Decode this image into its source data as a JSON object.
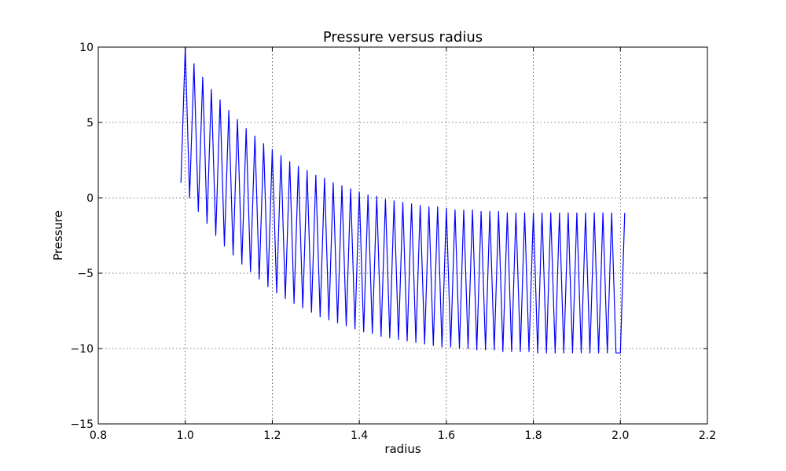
{
  "chart_data": {
    "type": "line",
    "title": "Pressure versus radius",
    "xlabel": "radius",
    "ylabel": "Pressure",
    "xlim": [
      0.8,
      2.2
    ],
    "ylim": [
      -15,
      10
    ],
    "xticks": [
      0.8,
      1.0,
      1.2,
      1.4,
      1.6,
      1.8,
      2.0,
      2.2
    ],
    "xtick_labels": [
      "0.8",
      "1.0",
      "1.2",
      "1.4",
      "1.6",
      "1.8",
      "2.0",
      "2.2"
    ],
    "yticks": [
      -15,
      -10,
      -5,
      0,
      5,
      10
    ],
    "ytick_labels": [
      "−15",
      "−10",
      "−5",
      "0",
      "5",
      "10"
    ],
    "grid": true,
    "series": [
      {
        "color": "#0000ff",
        "x": [
          0.99,
          1.0,
          1.01,
          1.02,
          1.03,
          1.04,
          1.05,
          1.06,
          1.07,
          1.08,
          1.09,
          1.1,
          1.11,
          1.12,
          1.13,
          1.14,
          1.15,
          1.16,
          1.17,
          1.18,
          1.19,
          1.2,
          1.21,
          1.22,
          1.23,
          1.24,
          1.25,
          1.26,
          1.27,
          1.28,
          1.29,
          1.3,
          1.31,
          1.32,
          1.33,
          1.34,
          1.35,
          1.36,
          1.37,
          1.38,
          1.39,
          1.4,
          1.41,
          1.42,
          1.43,
          1.44,
          1.45,
          1.46,
          1.47,
          1.48,
          1.49,
          1.5,
          1.51,
          1.52,
          1.53,
          1.54,
          1.55,
          1.56,
          1.57,
          1.58,
          1.59,
          1.6,
          1.61,
          1.62,
          1.63,
          1.64,
          1.65,
          1.66,
          1.67,
          1.68,
          1.69,
          1.7,
          1.71,
          1.72,
          1.73,
          1.74,
          1.75,
          1.76,
          1.77,
          1.78,
          1.79,
          1.8,
          1.81,
          1.82,
          1.83,
          1.84,
          1.85,
          1.86,
          1.87,
          1.88,
          1.89,
          1.9,
          1.91,
          1.92,
          1.93,
          1.94,
          1.95,
          1.96,
          1.97,
          1.98,
          1.99,
          2.0,
          2.01
        ],
        "y": [
          1.0,
          10.0,
          0.0,
          8.9,
          -0.9,
          8.0,
          -1.7,
          7.2,
          -2.5,
          6.5,
          -3.2,
          5.8,
          -3.8,
          5.2,
          -4.4,
          4.6,
          -4.9,
          4.1,
          -5.4,
          3.6,
          -5.9,
          3.2,
          -6.3,
          2.8,
          -6.7,
          2.4,
          -7.0,
          2.1,
          -7.3,
          1.8,
          -7.6,
          1.5,
          -7.9,
          1.3,
          -8.1,
          1.0,
          -8.3,
          0.8,
          -8.5,
          0.6,
          -8.7,
          0.4,
          -8.9,
          0.2,
          -9.0,
          0.1,
          -9.2,
          -0.1,
          -9.3,
          -0.2,
          -9.4,
          -0.3,
          -9.5,
          -0.4,
          -9.6,
          -0.5,
          -9.7,
          -0.6,
          -9.8,
          -0.6,
          -9.9,
          -0.7,
          -9.9,
          -0.8,
          -10.0,
          -0.8,
          -10.0,
          -0.8,
          -10.1,
          -0.9,
          -10.1,
          -0.9,
          -10.1,
          -0.9,
          -10.2,
          -1.0,
          -10.2,
          -1.0,
          -10.2,
          -1.0,
          -10.2,
          -1.0,
          -10.3,
          -1.0,
          -10.3,
          -1.0,
          -10.3,
          -1.0,
          -10.3,
          -1.0,
          -10.3,
          -1.0,
          -10.3,
          -1.0,
          -10.3,
          -1.0,
          -10.3,
          -1.0,
          -10.3,
          -1.0,
          -10.3,
          -10.3,
          -1.0
        ]
      }
    ]
  }
}
